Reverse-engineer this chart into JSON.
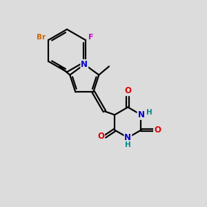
{
  "bg_color": "#dcdcdc",
  "atom_colors": {
    "C": "#000000",
    "N": "#0000cc",
    "O": "#dd0000",
    "Br": "#cc6600",
    "F": "#cc00cc",
    "H": "#008888"
  },
  "bond_color": "#000000",
  "bond_width": 1.6,
  "font_size": 8.5
}
